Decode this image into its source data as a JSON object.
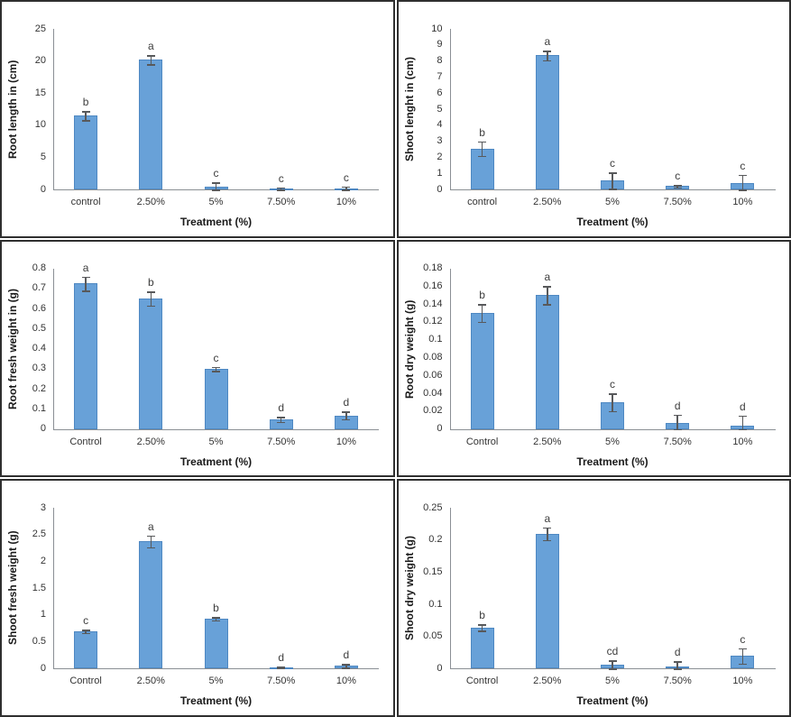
{
  "colors": {
    "bar_fill": "#68a1d8",
    "bar_border": "#4e88c2",
    "axis_line": "#8a8f94",
    "error_bar": "#58595b",
    "text": "#333333",
    "panel_border": "#2f2f2f",
    "background": "#ffffff"
  },
  "chart_data": [
    {
      "type": "bar",
      "title": "",
      "ylabel": "Root length in (cm)",
      "xlabel": "Treatment (%)",
      "categories": [
        "control",
        "2.50%",
        "5%",
        "7.50%",
        "10%"
      ],
      "values": [
        11.5,
        20.2,
        0.4,
        0.15,
        0.15
      ],
      "errors": [
        0.7,
        0.7,
        0.7,
        0.15,
        0.3
      ],
      "letters": [
        "b",
        "a",
        "c",
        "c",
        "c"
      ],
      "yticks": [
        "0",
        "5",
        "10",
        "15",
        "20",
        "25"
      ],
      "ylim": [
        0,
        25
      ],
      "grid": false,
      "legend": false
    },
    {
      "type": "bar",
      "title": "",
      "ylabel": "Shoot lenght in (cm)",
      "xlabel": "Treatment (%)",
      "categories": [
        "control",
        "2.50%",
        "5%",
        "7.50%",
        "10%"
      ],
      "values": [
        2.55,
        8.35,
        0.55,
        0.2,
        0.42
      ],
      "errors": [
        0.45,
        0.3,
        0.5,
        0.08,
        0.5
      ],
      "letters": [
        "b",
        "a",
        "c",
        "c",
        "c"
      ],
      "yticks": [
        "0",
        "1",
        "2",
        "3",
        "4",
        "5",
        "6",
        "7",
        "8",
        "9",
        "10"
      ],
      "ylim": [
        0,
        10
      ],
      "grid": false,
      "legend": false
    },
    {
      "type": "bar",
      "title": "",
      "ylabel": "Root fresh weight in (g)",
      "xlabel": "Treatment (%)",
      "categories": [
        "Control",
        "2.50%",
        "5%",
        "7.50%",
        "10%"
      ],
      "values": [
        0.725,
        0.65,
        0.3,
        0.048,
        0.068
      ],
      "errors": [
        0.035,
        0.035,
        0.01,
        0.012,
        0.02
      ],
      "letters": [
        "a",
        "b",
        "c",
        "d",
        "d"
      ],
      "yticks": [
        "0",
        "0.1",
        "0.2",
        "0.3",
        "0.4",
        "0.5",
        "0.6",
        "0.7",
        "0.8"
      ],
      "ylim": [
        0,
        0.8
      ],
      "grid": false,
      "legend": false
    },
    {
      "type": "bar",
      "title": "",
      "ylabel": "Root dry weight (g)",
      "xlabel": "Treatment (%)",
      "categories": [
        "Control",
        "2.50%",
        "5%",
        "7.50%",
        "10%"
      ],
      "values": [
        0.13,
        0.15,
        0.03,
        0.007,
        0.004
      ],
      "errors": [
        0.01,
        0.01,
        0.01,
        0.009,
        0.011
      ],
      "letters": [
        "b",
        "a",
        "c",
        "d",
        "d"
      ],
      "yticks": [
        "0",
        "0.02",
        "0.04",
        "0.06",
        "0.08",
        "0.1",
        "0.12",
        "0.14",
        "0.16",
        "0.18"
      ],
      "ylim": [
        0,
        0.18
      ],
      "grid": false,
      "legend": false
    },
    {
      "type": "bar",
      "title": "",
      "ylabel": "Shoot fresh weight (g)",
      "xlabel": "Treatment (%)",
      "categories": [
        "Control",
        "2.50%",
        "5%",
        "7.50%",
        "10%"
      ],
      "values": [
        0.7,
        2.38,
        0.93,
        0.03,
        0.05
      ],
      "errors": [
        0.03,
        0.11,
        0.03,
        0.015,
        0.035
      ],
      "letters": [
        "c",
        "a",
        "b",
        "d",
        "d"
      ],
      "yticks": [
        "0",
        "0.5",
        "1",
        "1.5",
        "2",
        "2.5",
        "3"
      ],
      "ylim": [
        0,
        3
      ],
      "grid": false,
      "legend": false
    },
    {
      "type": "bar",
      "title": "",
      "ylabel": "Shoot dry weight (g)",
      "xlabel": "Treatment (%)",
      "categories": [
        "Control",
        "2.50%",
        "5%",
        "7.50%",
        "10%"
      ],
      "values": [
        0.064,
        0.21,
        0.006,
        0.003,
        0.02
      ],
      "errors": [
        0.005,
        0.01,
        0.007,
        0.008,
        0.012
      ],
      "letters": [
        "b",
        "a",
        "cd",
        "d",
        "c"
      ],
      "yticks": [
        "0",
        "0.05",
        "0.1",
        "0.15",
        "0.2",
        "0.25"
      ],
      "ylim": [
        0,
        0.25
      ],
      "grid": false,
      "legend": false
    }
  ]
}
